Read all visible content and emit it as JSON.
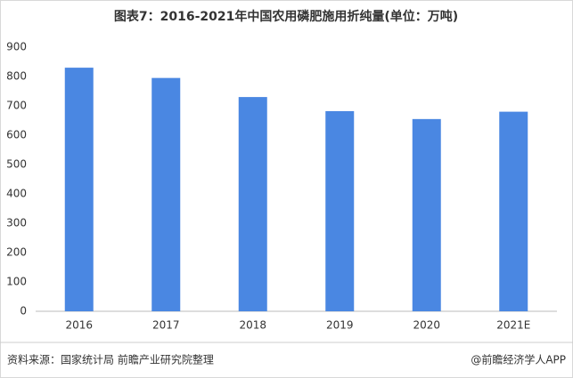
{
  "chart_data": {
    "type": "bar",
    "title": "图表7：2016-2021年中国农用磷肥施用折纯量(单位：万吨)",
    "categories": [
      "2016",
      "2017",
      "2018",
      "2019",
      "2020",
      "2021E"
    ],
    "values": [
      830,
      795,
      730,
      682,
      655,
      680
    ],
    "color": "#4a87e2",
    "ylim": [
      0,
      900
    ],
    "yticks": [
      0,
      100,
      200,
      300,
      400,
      500,
      600,
      700,
      800,
      900
    ],
    "grid": false
  },
  "footer": {
    "source": "资料来源：国家统计局 前瞻产业研究院整理",
    "brand": "@前瞻经济学人APP"
  }
}
